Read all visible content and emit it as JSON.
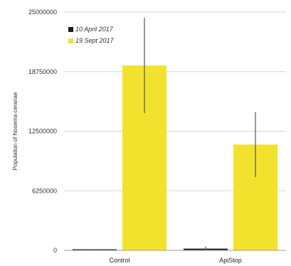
{
  "chart_data": {
    "type": "bar",
    "title": "",
    "xlabel": "",
    "ylabel": "Population of Nosema ceranae",
    "categories": [
      "Control",
      "ApiStop"
    ],
    "series": [
      {
        "name": "10 April 2017",
        "color": "#1a1a1a",
        "values": [
          50000,
          180000
        ],
        "errors": [
          20000,
          230000
        ]
      },
      {
        "name": "19 Sept 2017",
        "color": "#f2e22e",
        "values": [
          19400000,
          11100000
        ],
        "errors": [
          5000000,
          3400000
        ]
      }
    ],
    "ylim": [
      0,
      25000000
    ],
    "yticks": [
      0,
      6250000,
      12500000,
      18750000,
      25000000
    ],
    "ytick_labels": [
      "0",
      "6250000",
      "12500000",
      "18750000",
      "25000000"
    ],
    "grid": true,
    "legend_position": "top-left"
  }
}
